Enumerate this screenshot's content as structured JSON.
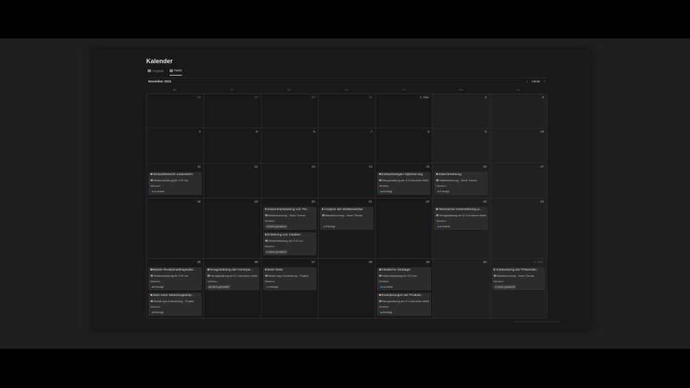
{
  "title": "Kalender",
  "tabs": [
    {
      "label": "Projekte",
      "active": false
    },
    {
      "label": "Tasks",
      "active": true
    }
  ],
  "month": "November 2024",
  "nav": {
    "prev": "‹",
    "today": "Heute",
    "next": "›"
  },
  "weekdays": [
    "Mo",
    "Di",
    "Mi",
    "Do",
    "Fr",
    "Sa",
    "So"
  ],
  "status_colors": {
    "In Arbeit": "#2f80ed",
    "Erledigt": "#27ae60",
    "Nicht gestartet": "#8a8a8a"
  },
  "weeks": [
    {
      "days": [
        {
          "n": "28",
          "muted": true,
          "tasks": []
        },
        {
          "n": "29",
          "muted": true,
          "tasks": []
        },
        {
          "n": "30",
          "muted": true,
          "tasks": []
        },
        {
          "n": "31",
          "muted": true,
          "tasks": []
        },
        {
          "n": "1. Nov.",
          "tasks": []
        },
        {
          "n": "2",
          "tasks": []
        },
        {
          "n": "3",
          "tasks": []
        }
      ]
    },
    {
      "days": [
        {
          "n": "4",
          "tasks": []
        },
        {
          "n": "5",
          "tasks": []
        },
        {
          "n": "6",
          "tasks": []
        },
        {
          "n": "7",
          "tasks": []
        },
        {
          "n": "8",
          "tasks": []
        },
        {
          "n": "9",
          "tasks": []
        },
        {
          "n": "10",
          "tasks": []
        }
      ]
    },
    {
      "days": [
        {
          "n": "11",
          "tasks": [
            {
              "title": "Verkaufsbericht vorbereiten",
              "project": "Webentwicklung für XYZ Inc.",
              "priority": "Medium",
              "status": "In Arbeit"
            }
          ]
        },
        {
          "n": "12",
          "tasks": []
        },
        {
          "n": "13",
          "tasks": []
        },
        {
          "n": "14",
          "tasks": []
        },
        {
          "n": "15",
          "tasks": [
            {
              "title": "Einkaufswagen-Optimierung",
              "project": "Neugestaltung der E-Commerce-Website",
              "priority": "Medium",
              "status": "Erledigt"
            }
          ]
        },
        {
          "n": "16",
          "tasks": [
            {
              "title": "Datenerhebung",
              "project": "Marktforschung - Neue Trends",
              "priority": "Medium",
              "status": "Erledigt"
            }
          ]
        },
        {
          "n": "17",
          "tasks": []
        }
      ]
    },
    {
      "days": [
        {
          "n": "18",
          "tasks": []
        },
        {
          "n": "19",
          "tasks": []
        },
        {
          "n": "20",
          "tasks": [
            {
              "title": "Zusammenstellung von Tre...",
              "project": "Marktforschung - Neue Trends",
              "priority": "Medium",
              "status": "Nicht gestartet"
            },
            {
              "title": "Erstellung von Inhalten",
              "project": "Webentwicklung für XYZ Inc.",
              "priority": "Medium",
              "status": "Nicht gestartet"
            }
          ]
        },
        {
          "n": "21",
          "tasks": [
            {
              "title": "Analyse der Wettbewerber",
              "project": "Marktforschung - Neue Trends",
              "priority": "",
              "status": "Erledigt"
            }
          ]
        },
        {
          "n": "22",
          "tasks": []
        },
        {
          "n": "23",
          "tasks": [
            {
              "title": "Technische Unterstützung a...",
              "project": "Neugestaltung der E-Commerce-Website",
              "priority": "Medium",
              "status": "In Arbeit"
            }
          ]
        },
        {
          "n": "24",
          "tasks": []
        }
      ]
    },
    {
      "days": [
        {
          "n": "25",
          "tasks": [
            {
              "title": "Mobile Reaktionsfähigkeitst...",
              "project": "Webentwicklung für XYZ Inc.",
              "priority": "Medium",
              "status": "Erledigt"
            },
            {
              "title": "Start einer Marketingkamp...",
              "project": "Mobile App Entwicklung - Projekt",
              "priority": "Medium",
              "status": "Erledigt"
            }
          ]
        },
        {
          "n": "26",
          "tasks": [
            {
              "title": "Neugestaltung der Homepa...",
              "project": "Neugestaltung der E-Commerce-Website",
              "priority": "Medium",
              "status": "Nicht gestartet"
            }
          ]
        },
        {
          "n": "27",
          "tasks": [
            {
              "title": "Beta-Tests",
              "project": "Mobile App Entwicklung - Projekt",
              "priority": "Medium",
              "status": "Erledigt"
            }
          ]
        },
        {
          "n": "28",
          "tasks": []
        },
        {
          "n": "29",
          "tasks": [
            {
              "title": "Inhaltliche Strategie",
              "project": "Webentwicklung für XYZ Inc.",
              "priority": "Medium",
              "status": "In Arbeit"
            },
            {
              "title": "Erweiterungen der Produkt...",
              "project": "Neugestaltung der E-Commerce-Website",
              "priority": "Medium",
              "status": "Erledigt"
            }
          ]
        },
        {
          "n": "30",
          "tasks": []
        },
        {
          "n": "1. Dez.",
          "muted": true,
          "tasks": [
            {
              "title": "Vorbereitung der Präsentati...",
              "project": "Marktforschung - Neue Trends",
              "priority": "Medium",
              "status": "Nicht gestartet"
            }
          ]
        }
      ]
    }
  ]
}
